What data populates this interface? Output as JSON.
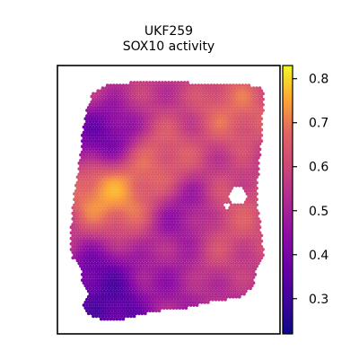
{
  "figure": {
    "title_line1": "UKF259",
    "title_line2": "SOX10 activity"
  },
  "chart_data": {
    "type": "heatmap",
    "subtype": "spatial-spot-map",
    "title": "UKF259\nSOX10 activity",
    "xlabel": "",
    "ylabel": "",
    "colormap": "plasma",
    "colorbar": {
      "vmin": 0.22,
      "vmax": 0.83,
      "ticks": [
        0.3,
        0.4,
        0.5,
        0.6,
        0.7,
        0.8
      ],
      "tick_labels": [
        "0.3",
        "0.4",
        "0.5",
        "0.6",
        "0.7",
        "0.8"
      ],
      "placement": "right"
    },
    "axes_ticks_visible": false,
    "grid": false,
    "value_hotspots": [
      {
        "region": "upper-left",
        "value": 0.3
      },
      {
        "region": "left-middle",
        "value": 0.82
      },
      {
        "region": "center-left",
        "value": 0.74
      },
      {
        "region": "upper-middle",
        "value": 0.7
      },
      {
        "region": "top-right",
        "value": 0.72
      },
      {
        "region": "right-middle",
        "value": 0.66
      },
      {
        "region": "center",
        "value": 0.42
      },
      {
        "region": "lower-center",
        "value": 0.45
      },
      {
        "region": "lower-left",
        "value": 0.3
      },
      {
        "region": "bottom-left",
        "value": 0.25
      },
      {
        "region": "lower-right",
        "value": 0.62
      },
      {
        "region": "bottom-right",
        "value": 0.5
      }
    ]
  }
}
